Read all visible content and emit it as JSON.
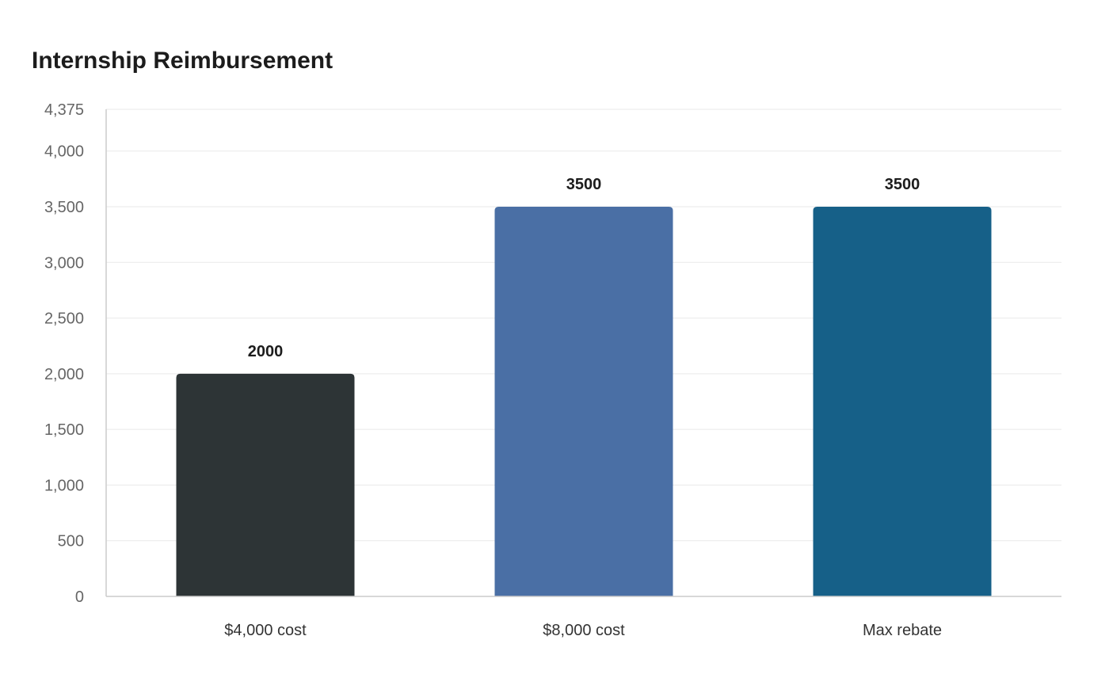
{
  "chart_data": {
    "type": "bar",
    "title": "Internship Reimbursement",
    "categories": [
      "$4,000 cost",
      "$8,000 cost",
      "Max rebate"
    ],
    "values": [
      2000,
      3500,
      3500
    ],
    "data_labels": [
      "2000",
      "3500",
      "3500"
    ],
    "bar_colors": [
      "#2d3436",
      "#4a6fa5",
      "#166088"
    ],
    "ylim": [
      0,
      4375
    ],
    "yticks": [
      0,
      500,
      1000,
      1500,
      2000,
      2500,
      3000,
      3500,
      4000,
      4375
    ],
    "ytick_labels": [
      "0",
      "500",
      "1,000",
      "1,500",
      "2,000",
      "2,500",
      "3,000",
      "3,500",
      "4,000",
      "4,375"
    ],
    "xlabel": "",
    "ylabel": "",
    "grid": true,
    "legend": "none"
  }
}
